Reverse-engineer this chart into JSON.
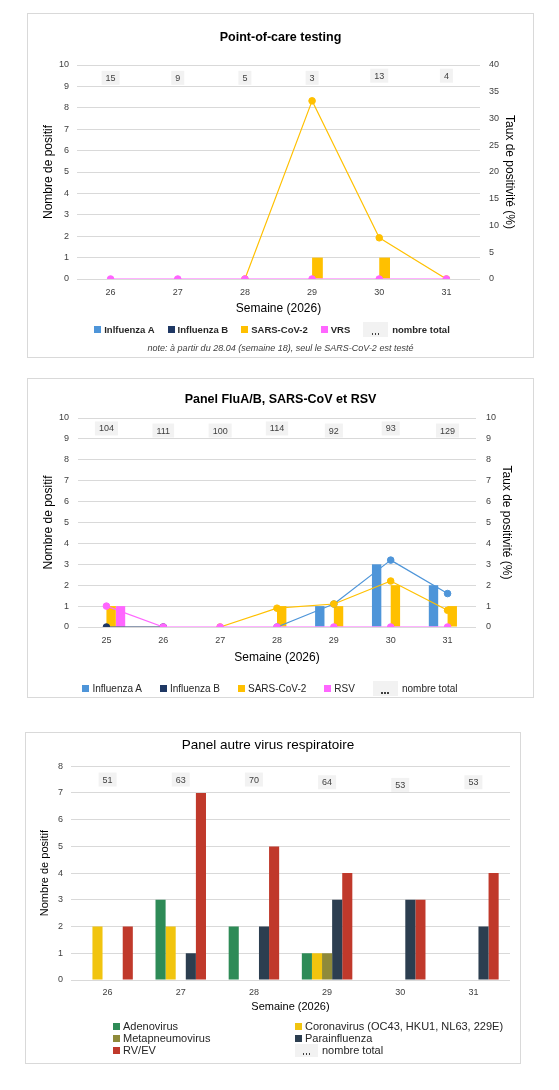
{
  "chart_data": [
    {
      "type": "bar",
      "title": "Point-of-care testing",
      "xlabel": "Semaine (2026)",
      "ylabel": "Nombre de positif",
      "y2label": "Taux de positivité (%)",
      "categories": [
        "26",
        "27",
        "28",
        "29",
        "30",
        "31"
      ],
      "series": [
        {
          "name": "Inlfuenza A",
          "color": "#4e95d9",
          "values": [
            0,
            0,
            0,
            0,
            0,
            0
          ]
        },
        {
          "name": "Influenza B",
          "color": "#1f3864",
          "values": [
            0,
            0,
            0,
            0,
            0,
            0
          ]
        },
        {
          "name": "SARS-CoV-2",
          "color": "#ffc000",
          "values": [
            0,
            0,
            0,
            1,
            1,
            0
          ]
        },
        {
          "name": "VRS",
          "color": "#ff66ff",
          "values": [
            0,
            0,
            0,
            0,
            0,
            0
          ]
        },
        {
          "type": "line",
          "axis": "y2",
          "color": "#ffc000",
          "values": [
            null,
            null,
            0,
            33.3,
            7.7,
            0
          ]
        },
        {
          "type": "line",
          "axis": "y2",
          "color": "#ff66ff",
          "values": [
            0,
            0,
            0,
            0,
            0,
            0
          ]
        }
      ],
      "ylim": [
        0,
        10
      ],
      "yticks": [
        0,
        1,
        2,
        3,
        4,
        5,
        6,
        7,
        8,
        9,
        10
      ],
      "y2lim": [
        0,
        40
      ],
      "y2ticks": [
        0,
        5,
        10,
        15,
        20,
        25,
        30,
        35,
        40
      ],
      "grid": "y",
      "legend": "bottom",
      "marker": "circle",
      "annotations": [
        {
          "text": "15",
          "x": "26",
          "y": 9.4
        },
        {
          "text": "9",
          "x": "27",
          "y": 9.4
        },
        {
          "text": "5",
          "x": "28",
          "y": 9.4
        },
        {
          "text": "3",
          "x": "29",
          "y": 9.4
        },
        {
          "text": "13",
          "x": "30",
          "y": 9.5
        },
        {
          "text": "4",
          "x": "31",
          "y": 9.5
        },
        "nombre total",
        "note: à partir du 28.04 (semaine 18), seul le SARS-CoV-2 est testé"
      ]
    },
    {
      "type": "bar",
      "title": "Panel FluA/B, SARS-CoV et RSV",
      "xlabel": "Semaine (2026)",
      "ylabel": "Nombre de positif",
      "y2label": "Taux de positivité (%)",
      "categories": [
        "25",
        "26",
        "27",
        "28",
        "29",
        "30",
        "31"
      ],
      "series": [
        {
          "name": "Influenza A",
          "color": "#4e95d9",
          "values": [
            0,
            0,
            0,
            0,
            1,
            3,
            2
          ]
        },
        {
          "name": "Influenza B",
          "color": "#1f3864",
          "values": [
            0,
            0,
            0,
            0,
            0,
            0,
            0
          ]
        },
        {
          "name": "SARS-CoV-2",
          "color": "#ffc000",
          "values": [
            1,
            0,
            0,
            1,
            1,
            2,
            1
          ]
        },
        {
          "name": "RSV",
          "color": "#ff66ff",
          "values": [
            1,
            0,
            0,
            0,
            0,
            0,
            0
          ]
        },
        {
          "type": "line",
          "axis": "y2",
          "color": "#4e95d9",
          "values": [
            null,
            null,
            null,
            0,
            1.1,
            3.2,
            1.6
          ]
        },
        {
          "type": "line",
          "axis": "y2",
          "color": "#1f3864",
          "values": [
            0,
            0,
            null,
            null,
            null,
            null,
            null
          ]
        },
        {
          "type": "line",
          "axis": "y2",
          "color": "#ffc000",
          "values": [
            null,
            null,
            0,
            0.9,
            1.1,
            2.2,
            0.8
          ]
        },
        {
          "type": "line",
          "axis": "y2",
          "color": "#ff66ff",
          "values": [
            1,
            0,
            0,
            0,
            0,
            0,
            0
          ]
        }
      ],
      "ylim": [
        0,
        10
      ],
      "yticks": [
        0,
        1,
        2,
        3,
        4,
        5,
        6,
        7,
        8,
        9,
        10
      ],
      "y2lim": [
        0,
        10
      ],
      "y2ticks": [
        0,
        1,
        2,
        3,
        4,
        5,
        6,
        7,
        8,
        9,
        10
      ],
      "grid": "y",
      "legend": "bottom",
      "marker": "circle",
      "annotations": [
        {
          "text": "104",
          "x": "25",
          "y": 9.5
        },
        {
          "text": "111",
          "x": "26",
          "y": 9.4
        },
        {
          "text": "100",
          "x": "27",
          "y": 9.4
        },
        {
          "text": "114",
          "x": "28",
          "y": 9.5
        },
        {
          "text": "92",
          "x": "29",
          "y": 9.4
        },
        {
          "text": "93",
          "x": "30",
          "y": 9.5
        },
        {
          "text": "129",
          "x": "31",
          "y": 9.4
        },
        "nombre total"
      ]
    },
    {
      "type": "bar",
      "title": "Panel autre virus respiratoire",
      "xlabel": "Semaine (2026)",
      "ylabel": "Nombre de positif",
      "categories": [
        "26",
        "27",
        "28",
        "29",
        "30",
        "31"
      ],
      "series": [
        {
          "name": "Adenovirus",
          "color": "#2e8b57",
          "values": [
            0,
            3,
            2,
            1,
            0,
            0
          ]
        },
        {
          "name": "Coronavirus (OC43, HKU1, NL63, 229E)",
          "color": "#f1c40f",
          "values": [
            2,
            2,
            0,
            1,
            0,
            0
          ]
        },
        {
          "name": "Metapneumovirus",
          "color": "#8f8a3a",
          "values": [
            0,
            0,
            0,
            1,
            0,
            0
          ]
        },
        {
          "name": "Parainfluenza",
          "color": "#2c3e50",
          "values": [
            0,
            1,
            2,
            3,
            3,
            2
          ]
        },
        {
          "name": "RV/EV",
          "color": "#c0392b",
          "values": [
            2,
            7,
            5,
            4,
            3,
            4
          ]
        }
      ],
      "ylim": [
        0,
        8
      ],
      "yticks": [
        0,
        1,
        2,
        3,
        4,
        5,
        6,
        7,
        8
      ],
      "grid": "y",
      "legend": "bottom",
      "annotations": [
        {
          "text": "51",
          "x": "26",
          "y": 7.5
        },
        {
          "text": "63",
          "x": "27",
          "y": 7.5
        },
        {
          "text": "70",
          "x": "28",
          "y": 7.5
        },
        {
          "text": "64",
          "x": "29",
          "y": 7.4
        },
        {
          "text": "53",
          "x": "30",
          "y": 7.3
        },
        {
          "text": "53",
          "x": "31",
          "y": 7.4
        },
        "nombre total"
      ]
    }
  ]
}
